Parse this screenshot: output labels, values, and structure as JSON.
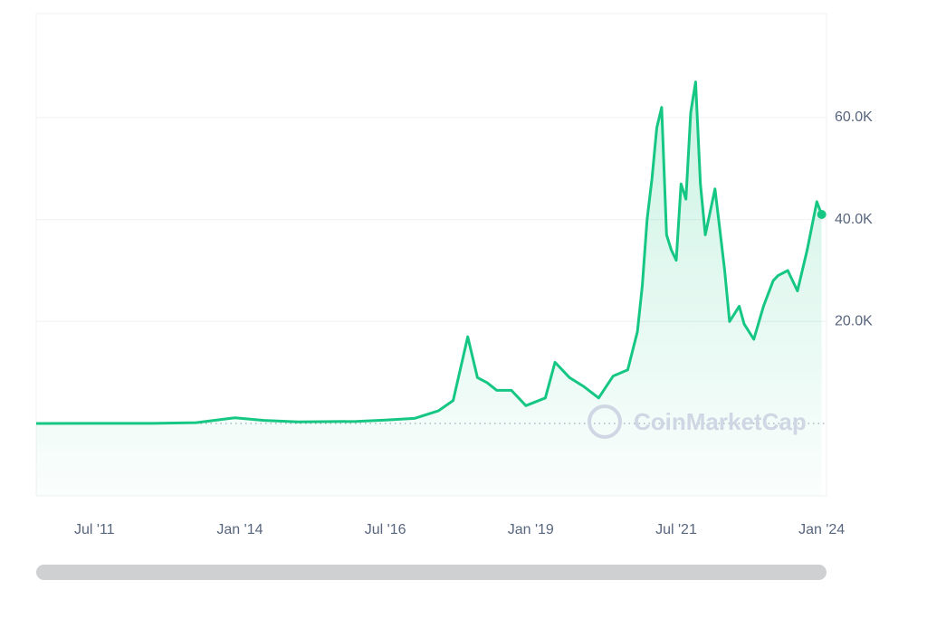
{
  "chart_data": {
    "type": "line",
    "watermark": "CoinMarketCap",
    "color": "#16c784",
    "x": [
      "2010-07",
      "2011-07",
      "2012-07",
      "2013-04",
      "2013-11",
      "2013-12",
      "2014-06",
      "2015-01",
      "2016-01",
      "2016-07",
      "2017-01",
      "2017-06",
      "2017-09",
      "2017-12",
      "2018-02",
      "2018-04",
      "2018-06",
      "2018-09",
      "2018-12",
      "2019-04",
      "2019-06",
      "2019-09",
      "2019-12",
      "2020-03",
      "2020-06",
      "2020-09",
      "2020-11",
      "2020-12",
      "2021-01",
      "2021-02",
      "2021-03",
      "2021-04",
      "2021-05",
      "2021-06",
      "2021-07",
      "2021-08",
      "2021-09",
      "2021-10",
      "2021-11",
      "2021-12",
      "2022-01",
      "2022-03",
      "2022-04",
      "2022-05",
      "2022-06",
      "2022-08",
      "2022-09",
      "2022-11",
      "2023-01",
      "2023-03",
      "2023-04",
      "2023-06",
      "2023-08",
      "2023-10",
      "2023-12",
      "2024-01"
    ],
    "values": [
      0,
      15,
      8,
      150,
      1000,
      1100,
      600,
      300,
      400,
      650,
      1000,
      2500,
      4500,
      17000,
      9000,
      8000,
      6500,
      6500,
      3500,
      5000,
      12000,
      9000,
      7200,
      5000,
      9300,
      10500,
      18000,
      27000,
      40000,
      48000,
      58000,
      62000,
      37000,
      34000,
      32000,
      47000,
      44000,
      61000,
      67000,
      47000,
      37000,
      46000,
      38000,
      30000,
      20000,
      23000,
      19500,
      16500,
      23000,
      28000,
      29000,
      30000,
      26000,
      34000,
      43500,
      41000
    ],
    "xlim": [
      "2010-07",
      "2024-02"
    ],
    "xticks": [
      {
        "value": "2011-07",
        "label": "Jul '11"
      },
      {
        "value": "2014-01",
        "label": "Jan '14"
      },
      {
        "value": "2016-07",
        "label": "Jul '16"
      },
      {
        "value": "2019-01",
        "label": "Jan '19"
      },
      {
        "value": "2021-07",
        "label": "Jul '21"
      },
      {
        "value": "2024-01",
        "label": "Jan '24"
      }
    ],
    "ylim": [
      -14200,
      80400
    ],
    "yticks": [
      {
        "value": 20000,
        "label": "20.0K"
      },
      {
        "value": 40000,
        "label": "40.0K"
      },
      {
        "value": 60000,
        "label": "60.0K"
      }
    ],
    "grid": true
  }
}
